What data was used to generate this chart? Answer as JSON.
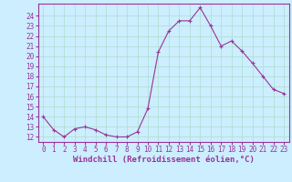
{
  "x": [
    0,
    1,
    2,
    3,
    4,
    5,
    6,
    7,
    8,
    9,
    10,
    11,
    12,
    13,
    14,
    15,
    16,
    17,
    18,
    19,
    20,
    21,
    22,
    23
  ],
  "y": [
    14.0,
    12.7,
    12.0,
    12.8,
    13.0,
    12.7,
    12.2,
    12.0,
    12.0,
    12.5,
    14.8,
    20.4,
    22.5,
    23.5,
    23.5,
    24.8,
    23.0,
    21.0,
    21.5,
    20.5,
    19.3,
    18.0,
    16.7,
    16.3
  ],
  "line_color": "#993399",
  "marker": "+",
  "marker_size": 3,
  "marker_lw": 0.8,
  "bg_color": "#cceeff",
  "grid_color": "#aaddcc",
  "xlabel": "Windchill (Refroidissement éolien,°C)",
  "xlabel_color": "#993399",
  "tick_color": "#993399",
  "ylim": [
    11.5,
    25.2
  ],
  "yticks": [
    12,
    13,
    14,
    15,
    16,
    17,
    18,
    19,
    20,
    21,
    22,
    23,
    24
  ],
  "xlim": [
    -0.5,
    23.5
  ],
  "xticks": [
    0,
    1,
    2,
    3,
    4,
    5,
    6,
    7,
    8,
    9,
    10,
    11,
    12,
    13,
    14,
    15,
    16,
    17,
    18,
    19,
    20,
    21,
    22,
    23
  ],
  "xtick_labels": [
    "0",
    "1",
    "2",
    "3",
    "4",
    "5",
    "6",
    "7",
    "8",
    "9",
    "10",
    "11",
    "12",
    "13",
    "14",
    "15",
    "16",
    "17",
    "18",
    "19",
    "20",
    "21",
    "22",
    "23"
  ],
  "spine_color": "#993399",
  "line_width": 0.8,
  "tick_fontsize": 5.5,
  "xlabel_fontsize": 6.5
}
